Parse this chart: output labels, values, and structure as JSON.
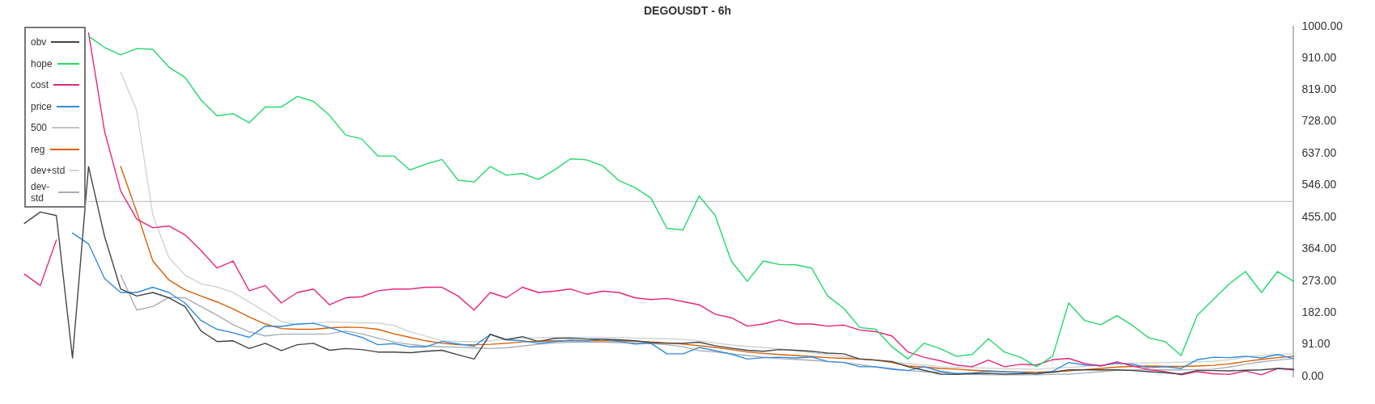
{
  "chart_data": {
    "type": "line",
    "title": "DEGOUSDT - 6h",
    "categories": [
      null,
      null,
      null,
      null,
      null,
      null,
      null,
      null,
      null,
      null,
      null,
      null,
      null,
      null,
      null,
      null,
      null,
      null,
      null,
      null,
      null,
      null,
      null,
      null,
      null,
      null,
      null,
      null,
      null,
      null,
      null,
      null,
      null,
      null,
      null,
      null,
      null,
      null,
      null,
      null,
      null,
      null,
      null,
      null,
      null,
      null,
      null,
      null,
      null,
      null,
      null,
      null,
      null,
      null,
      null,
      null,
      null,
      null,
      null,
      null,
      null,
      null,
      null,
      null,
      null,
      null,
      null,
      null,
      null,
      null,
      null,
      null,
      null,
      null,
      null,
      null,
      null,
      null,
      null,
      null
    ],
    "series": [
      {
        "name": "obv",
        "color": "#444444",
        "values": [
          437,
          470,
          460,
          53,
          600,
          400,
          250,
          230,
          240,
          225,
          200,
          130,
          100,
          102,
          80,
          95,
          74,
          91,
          95,
          75,
          80,
          77,
          70,
          70,
          68,
          72,
          75,
          62,
          50,
          121,
          105,
          114,
          100,
          109,
          110,
          107,
          107,
          105,
          102,
          97,
          95,
          95,
          98,
          88,
          81,
          75,
          72,
          77,
          75,
          72,
          67,
          65,
          50,
          47,
          43,
          28,
          18,
          7,
          6,
          8,
          9,
          7,
          8,
          9,
          12,
          19,
          19,
          19,
          19,
          17,
          14,
          11,
          7,
          17,
          17,
          16,
          18,
          19,
          23,
          21
        ]
      },
      {
        "name": "hope",
        "color": "#22d86a",
        "values": [
          null,
          null,
          null,
          null,
          972,
          940,
          919,
          937,
          935,
          884,
          855,
          790,
          745,
          751,
          725,
          770,
          770,
          800,
          786,
          746,
          690,
          679,
          630,
          630,
          590,
          607,
          620,
          561,
          556,
          600,
          575,
          580,
          563,
          590,
          622,
          619,
          602,
          560,
          540,
          510,
          423,
          419,
          516,
          460,
          330,
          272,
          330,
          320,
          319,
          310,
          230,
          195,
          140,
          135,
          85,
          50,
          95,
          80,
          58,
          63,
          108,
          70,
          55,
          28,
          58,
          210,
          160,
          148,
          174,
          145,
          110,
          100,
          60,
          175,
          220,
          265,
          300,
          240,
          300,
          272
        ]
      },
      {
        "name": "cost",
        "color": "#e8247c",
        "values": [
          293,
          260,
          390,
          null,
          982,
          700,
          530,
          450,
          425,
          430,
          405,
          360,
          310,
          330,
          245,
          260,
          210,
          240,
          250,
          205,
          225,
          228,
          245,
          250,
          250,
          255,
          255,
          230,
          190,
          240,
          225,
          255,
          240,
          244,
          250,
          235,
          244,
          240,
          225,
          220,
          223,
          214,
          205,
          178,
          168,
          144,
          150,
          162,
          150,
          150,
          144,
          147,
          133,
          128,
          116,
          70,
          55,
          45,
          33,
          28,
          47,
          28,
          35,
          33,
          48,
          52,
          37,
          30,
          42,
          30,
          20,
          14,
          5,
          14,
          8,
          6,
          16,
          5,
          23,
          19
        ]
      },
      {
        "name": "price",
        "color": "#2f8be0",
        "values": [
          null,
          null,
          null,
          410,
          379,
          280,
          240,
          240,
          255,
          240,
          210,
          160,
          135,
          125,
          112,
          144,
          143,
          150,
          152,
          140,
          125,
          112,
          91,
          94,
          85,
          85,
          100,
          93,
          87,
          120,
          105,
          102,
          95,
          100,
          104,
          102,
          107,
          100,
          93,
          95,
          65,
          65,
          83,
          74,
          64,
          50,
          54,
          55,
          53,
          56,
          43,
          40,
          28,
          28,
          22,
          17,
          28,
          15,
          8,
          10,
          15,
          13,
          12,
          7,
          15,
          40,
          33,
          31,
          38,
          35,
          25,
          28,
          23,
          48,
          55,
          54,
          58,
          53,
          63,
          51
        ]
      },
      {
        "name": "500",
        "color": "#c4c4c4",
        "values": [
          null,
          null,
          null,
          null,
          500,
          500,
          500,
          500,
          500,
          500,
          500,
          500,
          500,
          500,
          500,
          500,
          500,
          500,
          500,
          500,
          500,
          500,
          500,
          500,
          500,
          500,
          500,
          500,
          500,
          500,
          500,
          500,
          500,
          500,
          500,
          500,
          500,
          500,
          500,
          500,
          500,
          500,
          500,
          500,
          500,
          500,
          500,
          500,
          500,
          500,
          500,
          500,
          500,
          500,
          500,
          500,
          500,
          500,
          500,
          500,
          500,
          500,
          500,
          500,
          500,
          500,
          500,
          500,
          500,
          500,
          500,
          500,
          500,
          500,
          500,
          500,
          500,
          500,
          500,
          500
        ]
      },
      {
        "name": "reg",
        "color": "#d95f02",
        "values": [
          null,
          null,
          null,
          null,
          null,
          null,
          600,
          470,
          330,
          276,
          248,
          230,
          213,
          193,
          170,
          150,
          137,
          135,
          135,
          139,
          141,
          140,
          135,
          122,
          112,
          102,
          95,
          91,
          91,
          92,
          95,
          99,
          101,
          102,
          102,
          102,
          102,
          102,
          101,
          99,
          96,
          93,
          88,
          83,
          77,
          70,
          66,
          63,
          60,
          57,
          54,
          52,
          50,
          47,
          40,
          30,
          27,
          23,
          21,
          18,
          16,
          14,
          13,
          12,
          14,
          16,
          20,
          23,
          27,
          29,
          30,
          29,
          29,
          30,
          32,
          36,
          43,
          49,
          54,
          58
        ]
      },
      {
        "name": "dev+std",
        "color": "#cfd3d7",
        "values": [
          null,
          null,
          null,
          null,
          null,
          null,
          870,
          760,
          461,
          340,
          290,
          265,
          256,
          240,
          213,
          185,
          157,
          148,
          152,
          156,
          155,
          153,
          153,
          146,
          128,
          115,
          102,
          100,
          100,
          102,
          107,
          110,
          111,
          112,
          112,
          112,
          112,
          111,
          110,
          109,
          108,
          106,
          102,
          96,
          90,
          86,
          83,
          79,
          74,
          68,
          62,
          57,
          52,
          46,
          41,
          37,
          33,
          28,
          26,
          25,
          24,
          22,
          22,
          21,
          24,
          26,
          29,
          33,
          37,
          38,
          39,
          40,
          41,
          42,
          44,
          48,
          56,
          61,
          63,
          65
        ]
      },
      {
        "name": "dev-std",
        "color": "#a6aeb6",
        "values": [
          null,
          null,
          null,
          null,
          null,
          null,
          290,
          190,
          200,
          226,
          225,
          200,
          175,
          148,
          128,
          116,
          121,
          121,
          121,
          122,
          130,
          122,
          110,
          99,
          92,
          87,
          85,
          84,
          82,
          80,
          82,
          87,
          92,
          96,
          98,
          98,
          98,
          97,
          96,
          94,
          91,
          85,
          74,
          70,
          65,
          60,
          55,
          51,
          49,
          46,
          43,
          40,
          34,
          27,
          20,
          17,
          14,
          12,
          9,
          7,
          5,
          5,
          5,
          5,
          6,
          7,
          10,
          14,
          18,
          19,
          19,
          19,
          19,
          20,
          21,
          27,
          35,
          42,
          47,
          51
        ]
      }
    ],
    "ylim": [
      0,
      1000
    ],
    "yticks": [
      {
        "value": 0,
        "label": "0.00"
      },
      {
        "value": 91,
        "label": "91.00"
      },
      {
        "value": 182,
        "label": "182.00"
      },
      {
        "value": 273,
        "label": "273.00"
      },
      {
        "value": 364,
        "label": "364.00"
      },
      {
        "value": 455,
        "label": "455.00"
      },
      {
        "value": 546,
        "label": "546.00"
      },
      {
        "value": 637,
        "label": "637.00"
      },
      {
        "value": 728,
        "label": "728.00"
      },
      {
        "value": 819,
        "label": "819.00"
      },
      {
        "value": 910,
        "label": "910.00"
      },
      {
        "value": 1000,
        "label": "1000.00"
      }
    ],
    "tick_labels": "y",
    "legend": "top left"
  }
}
